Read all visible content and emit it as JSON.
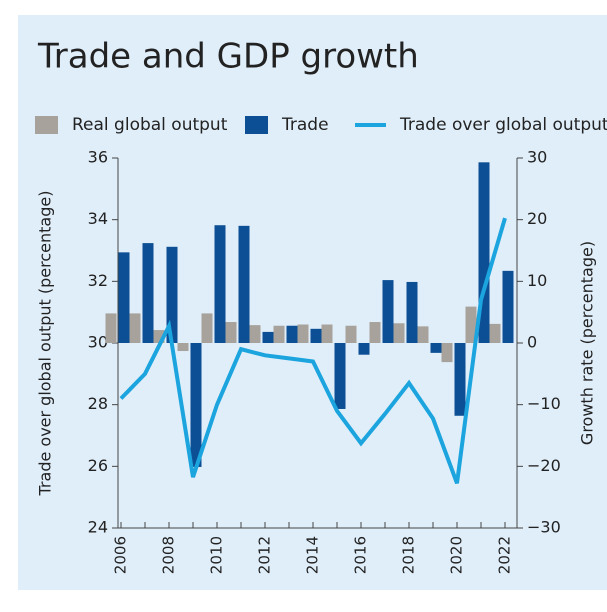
{
  "chart_data": {
    "type": "bar",
    "title": "Trade and GDP growth",
    "ylabel": "Trade over global output (percentage)",
    "y2label": "Growth rate (percentage)",
    "categories": [
      "2006",
      null,
      "2008",
      null,
      "2010",
      null,
      "2012",
      null,
      "2014",
      null,
      "2016",
      null,
      "2018",
      null,
      "2020",
      null,
      "2022"
    ],
    "series": [
      {
        "name": "Real global output",
        "type": "bar",
        "axis": "y2",
        "color": "#a7a39c",
        "values": [
          4.8,
          4.8,
          2.1,
          -1.3,
          4.8,
          3.4,
          2.9,
          2.8,
          3.0,
          3.0,
          2.8,
          3.4,
          3.2,
          2.7,
          -3.1,
          5.9,
          3.1
        ]
      },
      {
        "name": "Trade",
        "type": "bar",
        "axis": "y2",
        "color": "#0c4f95",
        "values": [
          14.7,
          16.2,
          15.6,
          -20.1,
          19.1,
          19.0,
          1.8,
          2.8,
          2.3,
          -10.7,
          -1.9,
          10.2,
          9.9,
          -1.6,
          -11.8,
          29.3,
          11.7
        ]
      },
      {
        "name": "Trade over global output",
        "type": "line",
        "axis": "y",
        "color": "#1ba4dd",
        "values": [
          28.2,
          29.0,
          30.55,
          25.65,
          28.0,
          29.8,
          29.6,
          29.5,
          29.4,
          27.8,
          26.75,
          27.7,
          28.7,
          27.55,
          25.45,
          31.4,
          34.05
        ]
      }
    ],
    "ylim": [
      24,
      36
    ],
    "yticks": [
      24,
      26,
      28,
      30,
      32,
      34,
      36
    ],
    "y2lim": [
      -30,
      30
    ],
    "y2ticks": [
      {
        "value": -30,
        "label": "−30"
      },
      {
        "value": -20,
        "label": "−20"
      },
      {
        "value": -10,
        "label": "−10"
      },
      0,
      10,
      20,
      30
    ],
    "legend": "top"
  }
}
